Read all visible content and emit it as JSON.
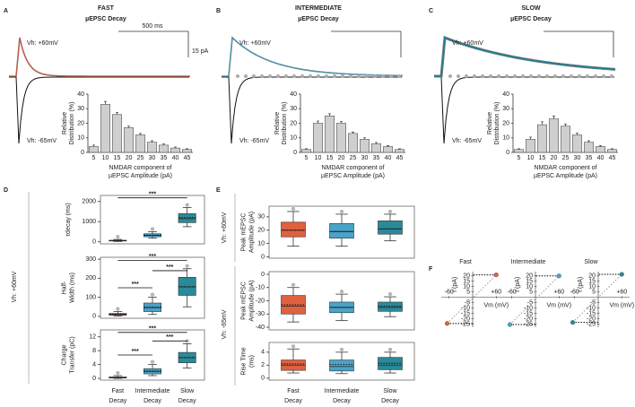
{
  "chart_data": [
    {
      "type": "bar",
      "panel": "A",
      "title": [
        "FAST",
        "µEPSC Decay"
      ],
      "trace_labels": [
        "Vh: +60mV",
        "Vh: -65mV"
      ],
      "scale_labels": [
        "500 ms",
        "15 pA"
      ],
      "color": "#d4553a",
      "categories": [
        5,
        10,
        15,
        20,
        25,
        30,
        35,
        40,
        45
      ],
      "values": [
        4,
        33,
        26,
        17,
        12,
        7,
        5,
        3,
        2
      ],
      "errors": [
        1,
        2,
        1.5,
        1,
        1,
        1,
        0.8,
        0.7,
        0.5
      ],
      "ylabel": [
        "Relative",
        "Distribution (%)"
      ],
      "xlabel": [
        "NMDAR component of",
        "µEPSC Amplitude (pA)"
      ],
      "ylim": [
        0,
        40
      ],
      "yticks": [
        0,
        10,
        20,
        30,
        40
      ]
    },
    {
      "type": "bar",
      "panel": "B",
      "title": [
        "INTERMEDIATE",
        "µEPSC Decay"
      ],
      "trace_labels": [
        "Vh: +60mV",
        "Vh: -65mV"
      ],
      "color": "#3d9bbf",
      "categories": [
        5,
        10,
        15,
        20,
        25,
        30,
        35,
        40,
        45
      ],
      "values": [
        2,
        20,
        25,
        20,
        13,
        9,
        6,
        4,
        2
      ],
      "errors": [
        0.5,
        1.5,
        1.5,
        1.2,
        1,
        1,
        0.8,
        0.7,
        0.5
      ],
      "ylabel": [
        "Relative",
        "Distribution (%)"
      ],
      "xlabel": [
        "NMDAR component of",
        "µEPSC Amplitude (pA)"
      ],
      "ylim": [
        0,
        40
      ],
      "yticks": [
        0,
        10,
        20,
        30,
        40
      ]
    },
    {
      "type": "bar",
      "panel": "C",
      "title": [
        "SLOW",
        "µEPSC Decay"
      ],
      "trace_labels": [
        "Vh: +60mV",
        "Vh: -65mV"
      ],
      "color": "#1b8191",
      "categories": [
        5,
        10,
        15,
        20,
        25,
        30,
        35,
        40,
        45
      ],
      "values": [
        2,
        9,
        19,
        23,
        18,
        12,
        7,
        4,
        2
      ],
      "errors": [
        0.5,
        1.5,
        2,
        2,
        1.5,
        1.2,
        1,
        0.7,
        0.5
      ],
      "ylabel": [
        "Relative",
        "Distribution (%)"
      ],
      "xlabel": [
        "NMDAR component of",
        "µEPSC Amplitude (pA)"
      ],
      "ylim": [
        0,
        40
      ],
      "yticks": [
        0,
        10,
        20,
        30,
        40
      ]
    },
    {
      "type": "box",
      "panel": "D",
      "side_labels": [
        "Vh: +60mV"
      ],
      "categories": [
        [
          "Fast",
          "Decay"
        ],
        [
          "Intermediate",
          "Decay"
        ],
        [
          "Slow",
          "Decay"
        ]
      ],
      "colors": [
        "#e0613f",
        "#4aa3c8",
        "#2a8a99"
      ],
      "subplots": [
        {
          "ylabel": [
            "τdecay (ms)"
          ],
          "ylim": [
            -100,
            2300
          ],
          "yticks": [
            0,
            1000,
            2000
          ],
          "min": [
            20,
            180,
            750
          ],
          "q1": [
            40,
            250,
            950
          ],
          "median": [
            60,
            320,
            1150
          ],
          "q3": [
            80,
            400,
            1400
          ],
          "max": [
            120,
            500,
            1700
          ],
          "mean": [
            60,
            330,
            1200
          ],
          "significance": [
            "***"
          ]
        },
        {
          "ylabel": [
            "Half-",
            "Width (ms)"
          ],
          "ylim": [
            -10,
            310
          ],
          "yticks": [
            0,
            100,
            200,
            300
          ],
          "min": [
            2,
            10,
            50
          ],
          "q1": [
            6,
            25,
            110
          ],
          "median": [
            10,
            45,
            155
          ],
          "q3": [
            15,
            70,
            205
          ],
          "max": [
            25,
            100,
            250
          ],
          "mean": [
            12,
            50,
            155
          ],
          "significance": [
            "***",
            "***",
            "***"
          ]
        },
        {
          "ylabel": [
            "Charge",
            "Transfer (pC)"
          ],
          "ylim": [
            -0.5,
            14
          ],
          "yticks": [
            0,
            4,
            8,
            12
          ],
          "min": [
            0,
            0.8,
            3
          ],
          "q1": [
            0.1,
            1.3,
            4.5
          ],
          "median": [
            0.2,
            2,
            6
          ],
          "q3": [
            0.4,
            2.8,
            7.5
          ],
          "max": [
            0.8,
            4,
            10
          ],
          "mean": [
            0.3,
            2.1,
            6
          ],
          "significance": [
            "***",
            "***",
            "***"
          ]
        }
      ]
    },
    {
      "type": "box",
      "panel": "E",
      "side_labels": [
        "Vh: +60mV",
        "Vh: -65mV"
      ],
      "categories": [
        [
          "Fast",
          "Decay"
        ],
        [
          "Intermediate",
          "Decay"
        ],
        [
          "Slow",
          "Decay"
        ]
      ],
      "colors": [
        "#e0613f",
        "#4aa3c8",
        "#2a8a99"
      ],
      "subplots": [
        {
          "ylabel": [
            "Peak mEPSC",
            "Amplitude (pA)"
          ],
          "ylim": [
            -1,
            38
          ],
          "yticks": [
            0,
            10,
            20,
            30
          ],
          "min": [
            8,
            8,
            12
          ],
          "q1": [
            15,
            14,
            17
          ],
          "median": [
            20,
            19,
            21
          ],
          "q3": [
            26,
            25,
            27
          ],
          "max": [
            34,
            32,
            32
          ],
          "mean": [
            20,
            19,
            21
          ]
        },
        {
          "ylabel": [
            "Peak mEPSC",
            "Amplitude (pA)"
          ],
          "ylim": [
            -42,
            2
          ],
          "yticks": [
            -40,
            -30,
            -20,
            -10,
            0
          ],
          "min": [
            -36,
            -35,
            -32
          ],
          "q1": [
            -30,
            -29,
            -28
          ],
          "median": [
            -24,
            -25,
            -25
          ],
          "q3": [
            -16,
            -21,
            -21
          ],
          "max": [
            -10,
            -15,
            -17
          ],
          "mean": [
            -23,
            -25,
            -24
          ]
        },
        {
          "ylabel": [
            "Rise Time",
            "(ms)"
          ],
          "ylim": [
            -0.3,
            5.5
          ],
          "yticks": [
            0,
            2,
            4
          ],
          "min": [
            0.8,
            0.7,
            0.8
          ],
          "q1": [
            1.2,
            1.1,
            1.3
          ],
          "median": [
            2,
            1.8,
            2
          ],
          "q3": [
            2.8,
            2.8,
            3.2
          ],
          "max": [
            4.5,
            4,
            4
          ],
          "mean": [
            2.2,
            2.1,
            2.3
          ]
        }
      ]
    },
    {
      "type": "scatter",
      "panel": "F",
      "xlabel": "Vm (mV)",
      "ylabel": "I (pA)",
      "xlim": [
        -80,
        80
      ],
      "xticks": [
        -60,
        {
          "value": 60,
          "label": "+60"
        }
      ],
      "ylim": [
        -28,
        24
      ],
      "yticks": [
        20,
        15,
        10,
        5,
        -5,
        -10,
        -15,
        -20,
        -25
      ],
      "subplots": [
        {
          "title": "Fast",
          "color": "#e0613f",
          "x": [
            -65,
            60
          ],
          "y": [
            -24.5,
            21
          ]
        },
        {
          "title": "Intermediate",
          "color": "#4aa3c8",
          "x": [
            -65,
            60
          ],
          "y": [
            -25.5,
            20
          ]
        },
        {
          "title": "Slow",
          "color": "#2a8a99",
          "x": [
            -65,
            60
          ],
          "y": [
            -23.5,
            21.5
          ]
        }
      ]
    }
  ]
}
